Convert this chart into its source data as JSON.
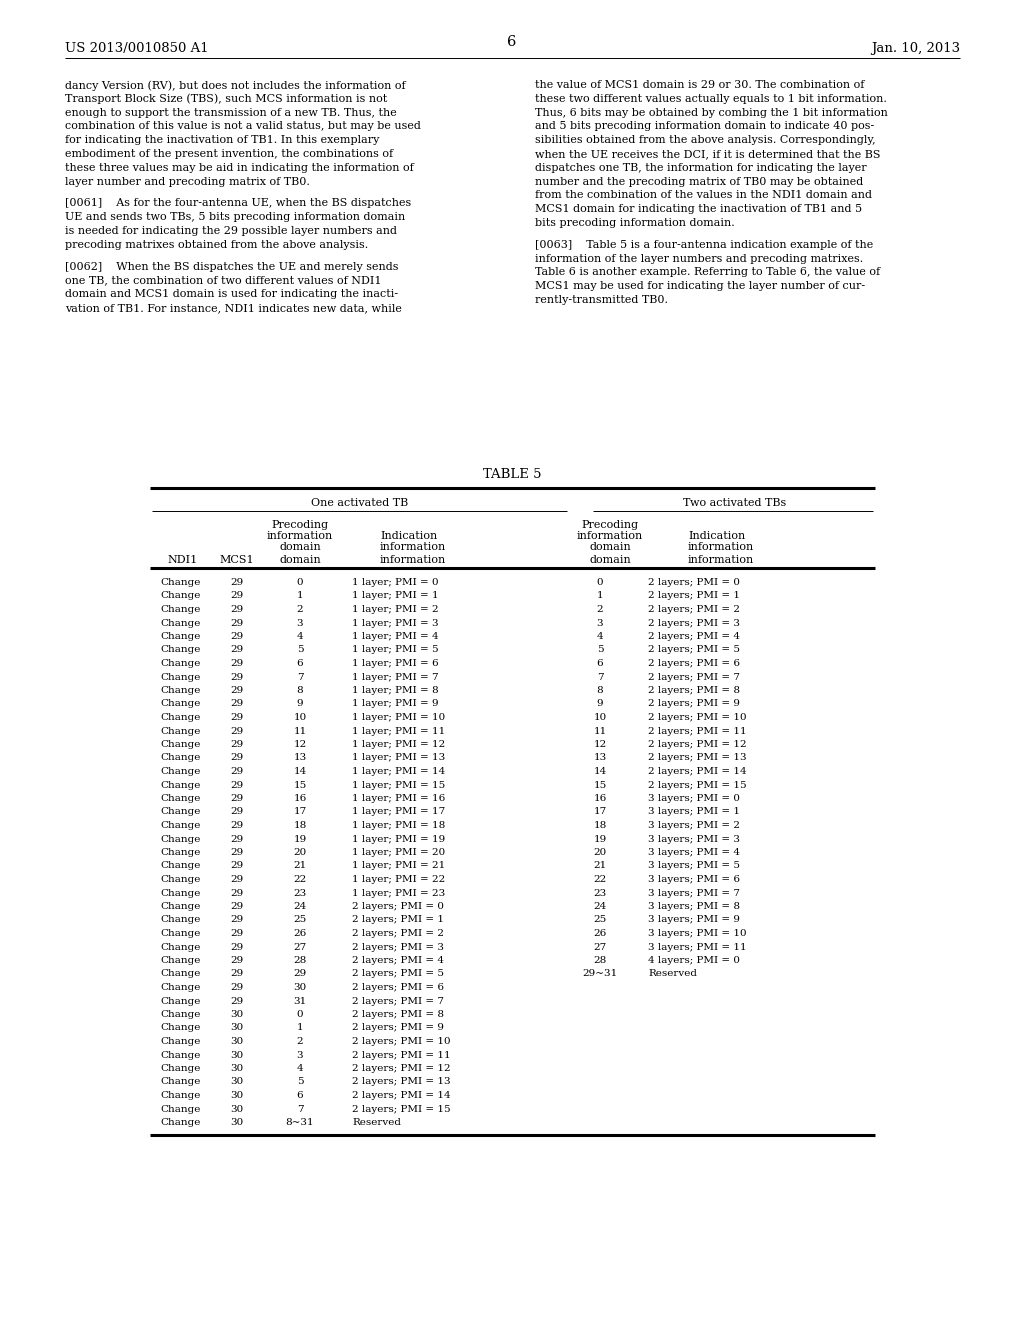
{
  "header_left": "US 2013/0010850 A1",
  "header_center": "6",
  "header_right": "Jan. 10, 2013",
  "left_col_text": [
    "dancy Version (RV), but does not includes the information of",
    "Transport Block Size (TBS), such MCS information is not",
    "enough to support the transmission of a new TB. Thus, the",
    "combination of this value is not a valid status, but may be used",
    "for indicating the inactivation of TB1. In this exemplary",
    "embodiment of the present invention, the combinations of",
    "these three values may be aid in indicating the information of",
    "layer number and precoding matrix of TB0.",
    "",
    "[0061]    As for the four-antenna UE, when the BS dispatches",
    "UE and sends two TBs, 5 bits precoding information domain",
    "is needed for indicating the 29 possible layer numbers and",
    "precoding matrixes obtained from the above analysis.",
    "",
    "[0062]    When the BS dispatches the UE and merely sends",
    "one TB, the combination of two different values of NDI1",
    "domain and MCS1 domain is used for indicating the inacti-",
    "vation of TB1. For instance, NDI1 indicates new data, while"
  ],
  "right_col_text": [
    "the value of MCS1 domain is 29 or 30. The combination of",
    "these two different values actually equals to 1 bit information.",
    "Thus, 6 bits may be obtained by combing the 1 bit information",
    "and 5 bits precoding information domain to indicate 40 pos-",
    "sibilities obtained from the above analysis. Correspondingly,",
    "when the UE receives the DCI, if it is determined that the BS",
    "dispatches one TB, the information for indicating the layer",
    "number and the precoding matrix of TB0 may be obtained",
    "from the combination of the values in the NDI1 domain and",
    "MCS1 domain for indicating the inactivation of TB1 and 5",
    "bits precoding information domain.",
    "",
    "[0063]    Table 5 is a four-antenna indication example of the",
    "information of the layer numbers and precoding matrixes.",
    "Table 6 is another example. Referring to Table 6, the value of",
    "MCS1 may be used for indicating the layer number of cur-",
    "rently-transmitted TB0."
  ],
  "table_title": "TABLE 5",
  "rows": [
    [
      "Change",
      "29",
      "0",
      "1 layer; PMI = 0",
      "0",
      "2 layers; PMI = 0"
    ],
    [
      "Change",
      "29",
      "1",
      "1 layer; PMI = 1",
      "1",
      "2 layers; PMI = 1"
    ],
    [
      "Change",
      "29",
      "2",
      "1 layer; PMI = 2",
      "2",
      "2 layers; PMI = 2"
    ],
    [
      "Change",
      "29",
      "3",
      "1 layer; PMI = 3",
      "3",
      "2 layers; PMI = 3"
    ],
    [
      "Change",
      "29",
      "4",
      "1 layer; PMI = 4",
      "4",
      "2 layers; PMI = 4"
    ],
    [
      "Change",
      "29",
      "5",
      "1 layer; PMI = 5",
      "5",
      "2 layers; PMI = 5"
    ],
    [
      "Change",
      "29",
      "6",
      "1 layer; PMI = 6",
      "6",
      "2 layers; PMI = 6"
    ],
    [
      "Change",
      "29",
      "7",
      "1 layer; PMI = 7",
      "7",
      "2 layers; PMI = 7"
    ],
    [
      "Change",
      "29",
      "8",
      "1 layer; PMI = 8",
      "8",
      "2 layers; PMI = 8"
    ],
    [
      "Change",
      "29",
      "9",
      "1 layer; PMI = 9",
      "9",
      "2 layers; PMI = 9"
    ],
    [
      "Change",
      "29",
      "10",
      "1 layer; PMI = 10",
      "10",
      "2 layers; PMI = 10"
    ],
    [
      "Change",
      "29",
      "11",
      "1 layer; PMI = 11",
      "11",
      "2 layers; PMI = 11"
    ],
    [
      "Change",
      "29",
      "12",
      "1 layer; PMI = 12",
      "12",
      "2 layers; PMI = 12"
    ],
    [
      "Change",
      "29",
      "13",
      "1 layer; PMI = 13",
      "13",
      "2 layers; PMI = 13"
    ],
    [
      "Change",
      "29",
      "14",
      "1 layer; PMI = 14",
      "14",
      "2 layers; PMI = 14"
    ],
    [
      "Change",
      "29",
      "15",
      "1 layer; PMI = 15",
      "15",
      "2 layers; PMI = 15"
    ],
    [
      "Change",
      "29",
      "16",
      "1 layer; PMI = 16",
      "16",
      "3 layers; PMI = 0"
    ],
    [
      "Change",
      "29",
      "17",
      "1 layer; PMI = 17",
      "17",
      "3 layers; PMI = 1"
    ],
    [
      "Change",
      "29",
      "18",
      "1 layer; PMI = 18",
      "18",
      "3 layers; PMI = 2"
    ],
    [
      "Change",
      "29",
      "19",
      "1 layer; PMI = 19",
      "19",
      "3 layers; PMI = 3"
    ],
    [
      "Change",
      "29",
      "20",
      "1 layer; PMI = 20",
      "20",
      "3 layers; PMI = 4"
    ],
    [
      "Change",
      "29",
      "21",
      "1 layer; PMI = 21",
      "21",
      "3 layers; PMI = 5"
    ],
    [
      "Change",
      "29",
      "22",
      "1 layer; PMI = 22",
      "22",
      "3 layers; PMI = 6"
    ],
    [
      "Change",
      "29",
      "23",
      "1 layer; PMI = 23",
      "23",
      "3 layers; PMI = 7"
    ],
    [
      "Change",
      "29",
      "24",
      "2 layers; PMI = 0",
      "24",
      "3 layers; PMI = 8"
    ],
    [
      "Change",
      "29",
      "25",
      "2 layers; PMI = 1",
      "25",
      "3 layers; PMI = 9"
    ],
    [
      "Change",
      "29",
      "26",
      "2 layers; PMI = 2",
      "26",
      "3 layers; PMI = 10"
    ],
    [
      "Change",
      "29",
      "27",
      "2 layers; PMI = 3",
      "27",
      "3 layers; PMI = 11"
    ],
    [
      "Change",
      "29",
      "28",
      "2 layers; PMI = 4",
      "28",
      "4 layers; PMI = 0"
    ],
    [
      "Change",
      "29",
      "29",
      "2 layers; PMI = 5",
      "29~31",
      "Reserved"
    ],
    [
      "Change",
      "29",
      "30",
      "2 layers; PMI = 6",
      "",
      ""
    ],
    [
      "Change",
      "29",
      "31",
      "2 layers; PMI = 7",
      "",
      ""
    ],
    [
      "Change",
      "30",
      "0",
      "2 layers; PMI = 8",
      "",
      ""
    ],
    [
      "Change",
      "30",
      "1",
      "2 layers; PMI = 9",
      "",
      ""
    ],
    [
      "Change",
      "30",
      "2",
      "2 layers; PMI = 10",
      "",
      ""
    ],
    [
      "Change",
      "30",
      "3",
      "2 layers; PMI = 11",
      "",
      ""
    ],
    [
      "Change",
      "30",
      "4",
      "2 layers; PMI = 12",
      "",
      ""
    ],
    [
      "Change",
      "30",
      "5",
      "2 layers; PMI = 13",
      "",
      ""
    ],
    [
      "Change",
      "30",
      "6",
      "2 layers; PMI = 14",
      "",
      ""
    ],
    [
      "Change",
      "30",
      "7",
      "2 layers; PMI = 15",
      "",
      ""
    ],
    [
      "Change",
      "30",
      "8~31",
      "Reserved",
      "",
      ""
    ]
  ],
  "bg_color": "#ffffff",
  "text_color": "#000000",
  "body_fs": 8.0,
  "tbl_fs": 7.5,
  "hdr_fs": 9.5,
  "pg_num_fs": 10.5,
  "tbl_hdr_fs": 8.0,
  "tbl_title_fs": 9.5
}
